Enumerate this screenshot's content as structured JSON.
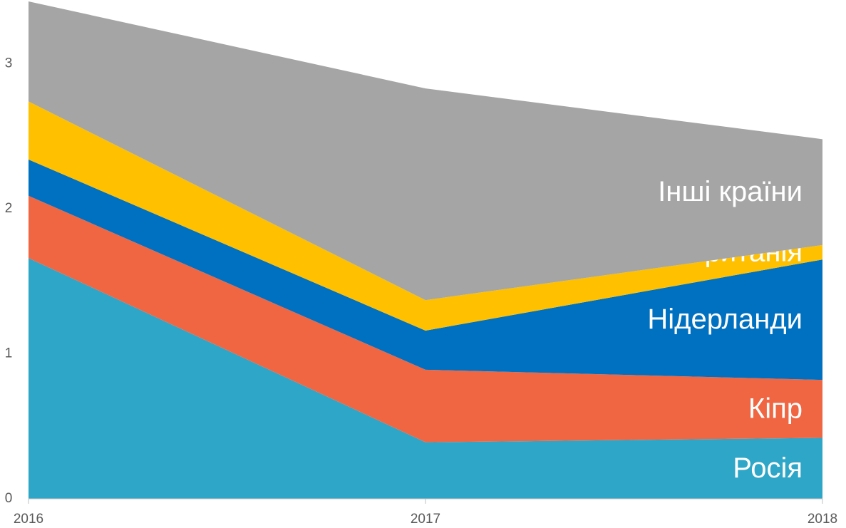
{
  "chart_data": {
    "type": "stacked_area",
    "categories": [
      "2016",
      "2017",
      "2018"
    ],
    "series": [
      {
        "name": "Росія",
        "color": "#2ea6c8",
        "values": [
          1.66,
          0.39,
          0.42
        ]
      },
      {
        "name": "Кіпр",
        "color": "#f06643",
        "values": [
          0.43,
          0.5,
          0.4
        ]
      },
      {
        "name": "Нідерланди",
        "color": "#0070c0",
        "values": [
          0.25,
          0.27,
          0.83
        ]
      },
      {
        "name": "Великобританія",
        "color": "#ffc000",
        "values": [
          0.4,
          0.21,
          0.1
        ]
      },
      {
        "name": "Інші країни",
        "color": "#a5a5a5",
        "values": [
          0.69,
          1.46,
          0.73
        ]
      }
    ],
    "ylim": [
      0,
      3.43
    ],
    "yticks": [
      0,
      1,
      2,
      3
    ]
  }
}
